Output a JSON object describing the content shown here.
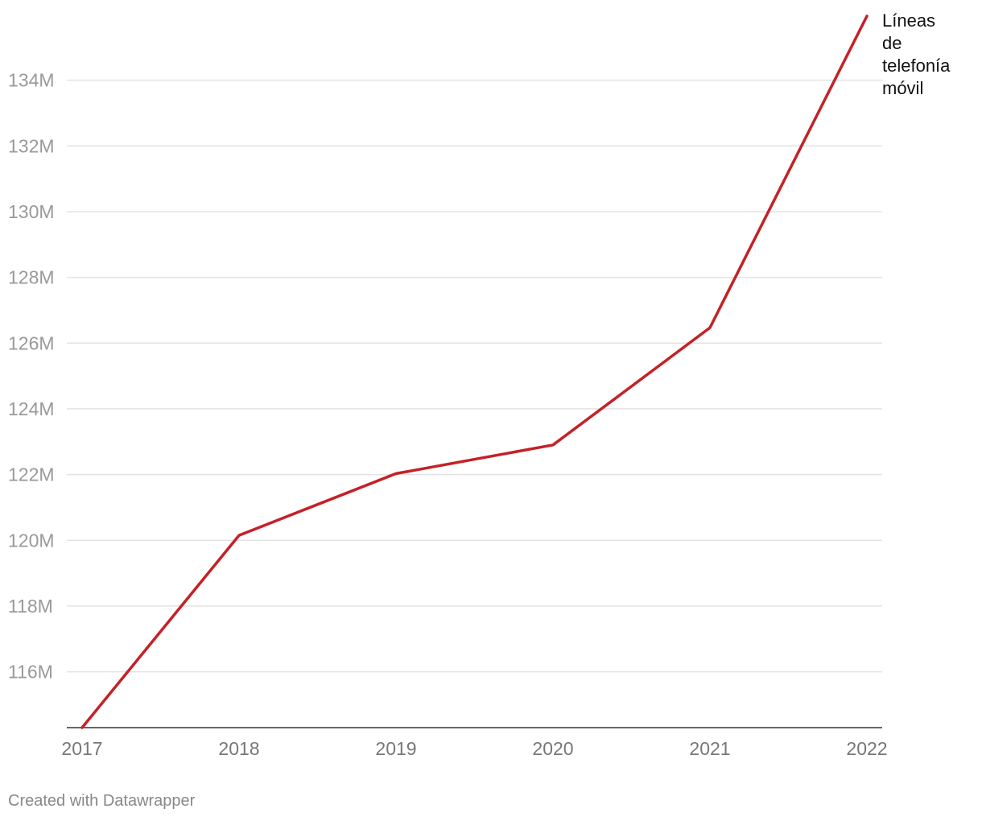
{
  "chart_data": {
    "type": "line",
    "x": [
      "2017",
      "2018",
      "2019",
      "2020",
      "2021",
      "2022"
    ],
    "series": [
      {
        "name": "Líneas de telefonía móvil",
        "name_lines": [
          "Líneas",
          "de",
          "telefonía",
          "móvil"
        ],
        "values": [
          114.3,
          120.15,
          122.03,
          122.9,
          126.47,
          135.95
        ],
        "color": "#c42127"
      }
    ],
    "y_ticks": [
      116,
      118,
      120,
      122,
      124,
      126,
      128,
      130,
      132,
      134
    ],
    "y_tick_labels": [
      "116M",
      "118M",
      "120M",
      "122M",
      "124M",
      "126M",
      "128M",
      "130M",
      "132M",
      "134M"
    ],
    "ylim": [
      114.3,
      135.95
    ],
    "grid": true,
    "title": "",
    "xlabel": "",
    "ylabel": ""
  },
  "footer": {
    "credit": "Created with Datawrapper"
  },
  "colors": {
    "grid": "#e3e3e3",
    "axis": "#333333"
  }
}
